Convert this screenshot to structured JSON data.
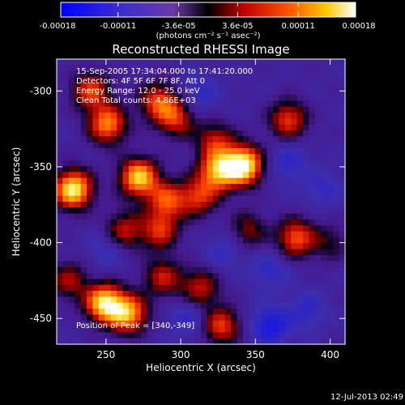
{
  "chart_data": {
    "type": "heatmap",
    "title": "Reconstructed RHESSI Image",
    "xlabel": "Heliocentric X (arcsec)",
    "ylabel": "Heliocentric Y (arcsec)",
    "xlim": [
      217,
      410
    ],
    "ylim": [
      -467,
      -279
    ],
    "x_ticks": [
      250,
      300,
      350,
      400
    ],
    "y_ticks": [
      -300,
      -350,
      -400,
      -450
    ],
    "colorbar": {
      "range": [
        -0.00018,
        0.00018
      ],
      "ticks": [
        "-0.00018",
        "-0.00011",
        "-3.6e-05",
        "3.6e-05",
        "0.00011",
        "0.00018"
      ],
      "unit_label": "(photons cm⁻² s⁻¹ asec⁻²)"
    },
    "info_lines": [
      "15-Sep-2005 17:34:04.000 to 17:41:20.000",
      "Detectors: 4F 5F 6F 7F 8F, Att 0",
      "Energy Range: 12.0 - 25.0 keV",
      "Clean     Total counts: 4.86E+03"
    ],
    "peak_label": "Position of Peak = [340,-349]",
    "peak": [
      340,
      -349
    ],
    "sources": [
      {
        "x": 342,
        "y": -349,
        "v": 1.0
      },
      {
        "x": 325,
        "y": -353,
        "v": 0.75
      },
      {
        "x": 323,
        "y": -333,
        "v": 0.45
      },
      {
        "x": 312,
        "y": -370,
        "v": 0.5
      },
      {
        "x": 272,
        "y": -357,
        "v": 0.85
      },
      {
        "x": 228,
        "y": -365,
        "v": 0.95
      },
      {
        "x": 291,
        "y": -372,
        "v": 0.55
      },
      {
        "x": 286,
        "y": -392,
        "v": 0.5
      },
      {
        "x": 262,
        "y": -392,
        "v": 0.45
      },
      {
        "x": 249,
        "y": -440,
        "v": 0.9
      },
      {
        "x": 265,
        "y": -447,
        "v": 0.75
      },
      {
        "x": 288,
        "y": -423,
        "v": 0.45
      },
      {
        "x": 251,
        "y": -322,
        "v": 0.7
      },
      {
        "x": 240,
        "y": -300,
        "v": 0.55
      },
      {
        "x": 285,
        "y": -307,
        "v": 0.55
      },
      {
        "x": 297,
        "y": -318,
        "v": 0.5
      },
      {
        "x": 313,
        "y": -430,
        "v": 0.45
      },
      {
        "x": 327,
        "y": -455,
        "v": 0.55
      },
      {
        "x": 372,
        "y": -319,
        "v": 0.55
      },
      {
        "x": 377,
        "y": -397,
        "v": 0.6
      },
      {
        "x": 400,
        "y": -400,
        "v": 0.25
      },
      {
        "x": 225,
        "y": -425,
        "v": 0.4
      },
      {
        "x": 345,
        "y": -392,
        "v": 0.35
      },
      {
        "x": 360,
        "y": -455,
        "v": -0.6
      },
      {
        "x": 385,
        "y": -445,
        "v": -0.35
      },
      {
        "x": 372,
        "y": -347,
        "v": -0.35
      },
      {
        "x": 360,
        "y": -418,
        "v": -0.35
      },
      {
        "x": 312,
        "y": -302,
        "v": -0.35
      },
      {
        "x": 250,
        "y": -405,
        "v": -0.3
      },
      {
        "x": 395,
        "y": -365,
        "v": -0.3
      },
      {
        "x": 305,
        "y": -450,
        "v": -0.35
      },
      {
        "x": 330,
        "y": -405,
        "v": -0.3
      }
    ]
  },
  "footer": {
    "timestamp": "12-Jul-2013 02:49"
  }
}
